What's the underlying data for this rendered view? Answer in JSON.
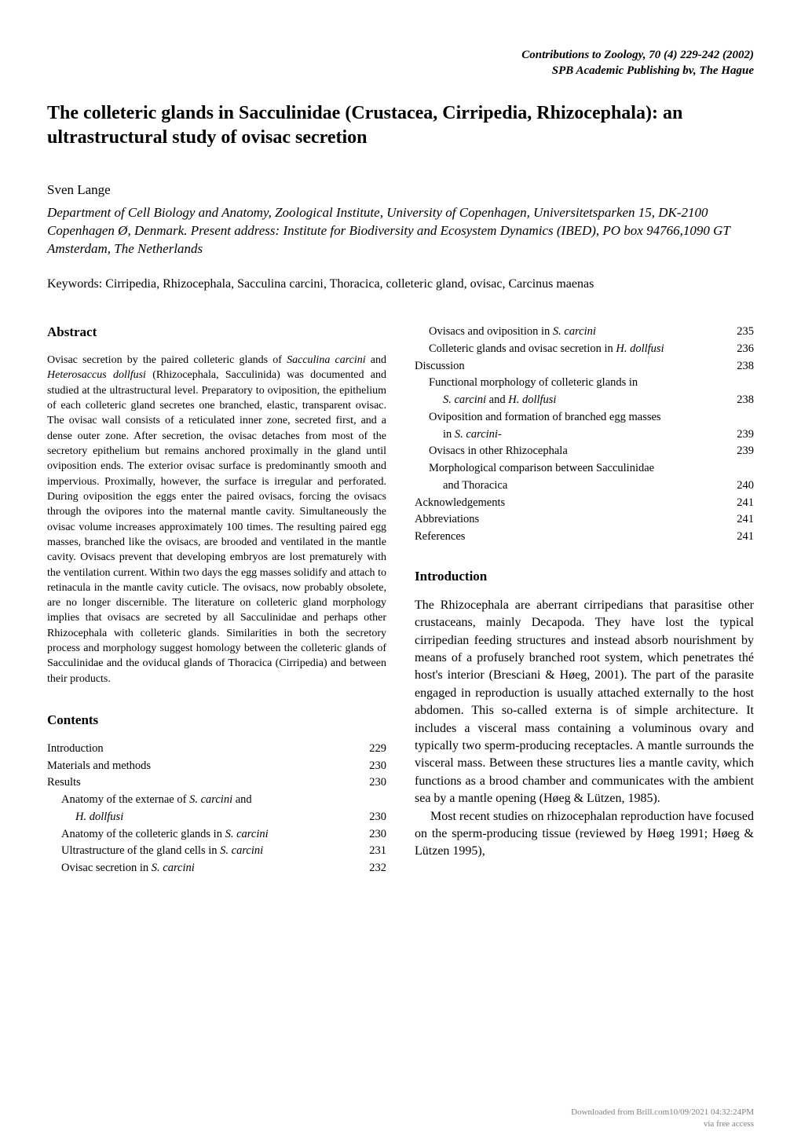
{
  "header": {
    "journal_line": "Contributions to Zoology, 70 (4) 229-242 (2002)",
    "publisher_line": "SPB Academic Publishing bv, The Hague"
  },
  "title": "The colleteric glands in Sacculinidae (Crustacea, Cirripedia, Rhizocephala): an ultrastructural study of ovisac secretion",
  "author": "Sven Lange",
  "affiliation": "Department of Cell Biology and Anatomy, Zoological Institute, University of Copenhagen, Universitetsparken 15, DK-2100 Copenhagen Ø, Denmark. Present address: Institute for Biodiversity and Ecosystem Dynamics (IBED), PO box 94766,1090 GT Amsterdam, The Netherlands",
  "keywords": {
    "label": "Keywords:",
    "prefix": " Cirripedia, Rhizocephala, ",
    "italic1": "Sacculina carcini",
    "mid": ", Thoracica, colleteric gland, ovisac, ",
    "italic2": "Carcinus maenas"
  },
  "abstract": {
    "heading": "Abstract",
    "p1a": "Ovisac secretion by the paired colleteric glands of ",
    "p1i1": "Sacculina carcini",
    "p1b": " and ",
    "p1i2": "Heterosaccus dollfusi",
    "p1c": " (Rhizocephala, Sacculinida) was documented and studied at the ultrastructural level. Preparatory to oviposition, the epithelium of each colleteric gland secretes one branched, elastic, transparent ovisac. The ovisac wall consists of a reticulated inner zone, secreted first, and a dense outer zone. After secretion, the ovisac detaches from most of the secretory epithelium but remains anchored proximally in the gland until oviposition ends. The exterior ovisac surface is predominantly smooth and impervious. Proximally, however, the surface is irregular and perforated. During oviposition the eggs enter the paired ovisacs, forcing the ovisacs through the ovipores into the maternal mantle cavity. Simultaneously the ovisac volume increases approximately 100 times. The resulting paired egg masses, branched like the ovisacs, are brooded and ventilated in the mantle cavity. Ovisacs prevent that developing embryos are lost prematurely with the ventilation current. Within two days the egg masses solidify and attach to retinacula in the mantle cavity cuticle. The ovisacs, now probably obsolete, are no longer discernible. The literature on colleteric gland morphology implies that ovisacs are secreted by all Sacculinidae and perhaps other Rhizocephala with colleteric glands. Similarities in both the secretory process and morphology suggest homology between the colleteric glands of Sacculinidae and the oviducal glands of Thoracica (Cirripedia) and between their products."
  },
  "contents": {
    "heading": "Contents"
  },
  "toc_left": [
    {
      "label_plain": "Introduction",
      "page": "229",
      "indent": 0
    },
    {
      "label_plain": "Materials and methods",
      "page": "230",
      "indent": 0
    },
    {
      "label_plain": "Results",
      "page": "230",
      "indent": 0
    },
    {
      "label_pre": "Anatomy of the externae of ",
      "label_it": "S. carcini",
      "label_post": " and",
      "indent": 1,
      "page": ""
    },
    {
      "label_it": "H. dollfusi",
      "page": "230",
      "indent": 2
    },
    {
      "label_pre": "Anatomy of the colleteric glands in ",
      "label_it": "S. carcini",
      "page": "230",
      "indent": 1
    },
    {
      "label_pre": "Ultrastructure of the gland cells in ",
      "label_it": "S. carcini",
      "page": "231",
      "indent": 1
    },
    {
      "label_pre": "Ovisac secretion in ",
      "label_it": "S. carcini",
      "page": "232",
      "indent": 1
    }
  ],
  "toc_right": [
    {
      "label_pre": "Ovisacs and oviposition in ",
      "label_it": "S. carcini",
      "page": "235",
      "indent": 1
    },
    {
      "label_pre": "Colleteric glands and ovisac secretion in ",
      "label_it": "H. dollfusi",
      "page": "236",
      "indent": 1
    },
    {
      "label_plain": "Discussion",
      "page": "238",
      "indent": 0
    },
    {
      "label_pre": "Functional morphology of colleteric glands in",
      "indent": 1,
      "page": ""
    },
    {
      "label_it": "S. carcini",
      "label_post_pre": " and ",
      "label_it2": "H. dollfusi",
      "page": "238",
      "indent": 2
    },
    {
      "label_pre": "Oviposition and formation of branched egg masses",
      "indent": 1,
      "page": ""
    },
    {
      "label_pre": "in ",
      "label_it": "S. carcini",
      "label_post": "-",
      "page": "239",
      "indent": 2
    },
    {
      "label_plain": "Ovisacs in other Rhizocephala",
      "page": "239",
      "indent": 1
    },
    {
      "label_plain": "Morphological comparison between Sacculinidae",
      "indent": 1,
      "page": ""
    },
    {
      "label_plain": "and Thoracica",
      "page": "240",
      "indent": 2
    },
    {
      "label_plain": "Acknowledgements",
      "page": "241",
      "indent": 0
    },
    {
      "label_plain": "Abbreviations",
      "page": "241",
      "indent": 0
    },
    {
      "label_plain": "References",
      "page": "241",
      "indent": 0
    }
  ],
  "introduction": {
    "heading": "Introduction",
    "p1": "The Rhizocephala are aberrant cirripedians that parasitise other crustaceans, mainly Decapoda. They have lost the typical cirripedian feeding structures and instead absorb nourishment by means of a profusely branched root system, which penetrates thé host's interior (Bresciani & Høeg, 2001). The part of the parasite engaged in reproduction is usually attached externally to the host abdomen. This so-called externa is of simple architecture. It includes a visceral mass containing a voluminous ovary and typically two sperm-producing receptacles. A mantle surrounds the visceral mass. Between these structures lies a mantle cavity, which functions as a brood chamber and communicates with the ambient sea by a mantle opening (Høeg & Lützen, 1985).",
    "p2": "Most recent studies on rhizocephalan reproduction have focused on the sperm-producing tissue (reviewed by Høeg 1991; Høeg & Lützen 1995),"
  },
  "footer": {
    "line1": "Downloaded from Brill.com10/09/2021 04:32:24PM",
    "line2": "via free access"
  }
}
